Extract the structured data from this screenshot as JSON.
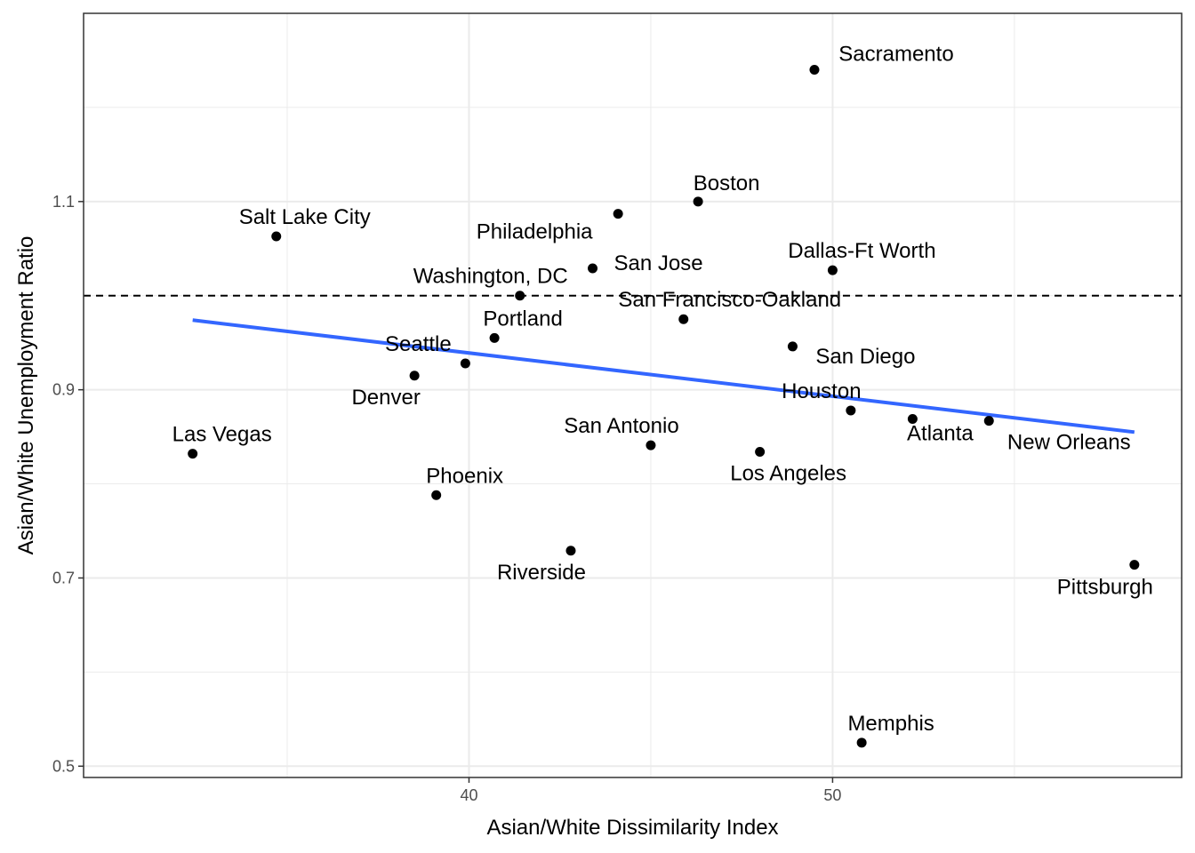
{
  "chart_data": {
    "type": "scatter",
    "xlabel": "Asian/White Dissimilarity Index",
    "ylabel": "Asian/White Unemployment Ratio",
    "xlim": [
      29.4,
      59.6
    ],
    "ylim": [
      0.488,
      1.3
    ],
    "x_ticks": [
      40,
      50
    ],
    "x_minor_ticks": [
      35,
      45,
      55
    ],
    "y_ticks": [
      0.5,
      0.7,
      0.9,
      1.1
    ],
    "y_minor_ticks": [
      0.6,
      0.8,
      1.0,
      1.2
    ],
    "reference_line": {
      "y": 1.0,
      "style": "dashed",
      "color": "#000000"
    },
    "trend_line": {
      "x": [
        32.4,
        58.3
      ],
      "y": [
        0.974,
        0.855
      ],
      "color": "#3366FF"
    },
    "point_color": "#000000",
    "grid": true,
    "points": [
      {
        "name": "Sacramento",
        "x": 49.5,
        "y": 1.24
      },
      {
        "name": "Boston",
        "x": 46.3,
        "y": 1.1
      },
      {
        "name": "Philadelphia",
        "x": 44.1,
        "y": 1.087
      },
      {
        "name": "Salt Lake City",
        "x": 34.7,
        "y": 1.063
      },
      {
        "name": "San Jose",
        "x": 43.4,
        "y": 1.029
      },
      {
        "name": "Dallas-Ft Worth",
        "x": 50.0,
        "y": 1.027
      },
      {
        "name": "Washington, DC",
        "x": 41.4,
        "y": 1.0
      },
      {
        "name": "San Francisco-Oakland",
        "x": 45.9,
        "y": 0.975
      },
      {
        "name": "Portland",
        "x": 40.7,
        "y": 0.955
      },
      {
        "name": "San Diego",
        "x": 48.9,
        "y": 0.946
      },
      {
        "name": "Seattle",
        "x": 39.9,
        "y": 0.928
      },
      {
        "name": "Denver",
        "x": 38.5,
        "y": 0.915
      },
      {
        "name": "Houston",
        "x": 50.5,
        "y": 0.878
      },
      {
        "name": "Atlanta",
        "x": 52.2,
        "y": 0.869
      },
      {
        "name": "New Orleans",
        "x": 54.3,
        "y": 0.867
      },
      {
        "name": "Las Vegas",
        "x": 32.4,
        "y": 0.832
      },
      {
        "name": "San Antonio",
        "x": 45.0,
        "y": 0.841
      },
      {
        "name": "Los Angeles",
        "x": 48.0,
        "y": 0.834
      },
      {
        "name": "Phoenix",
        "x": 39.1,
        "y": 0.788
      },
      {
        "name": "Riverside",
        "x": 42.8,
        "y": 0.729
      },
      {
        "name": "Pittsburgh",
        "x": 58.3,
        "y": 0.714
      },
      {
        "name": "Memphis",
        "x": 50.8,
        "y": 0.525
      }
    ]
  }
}
